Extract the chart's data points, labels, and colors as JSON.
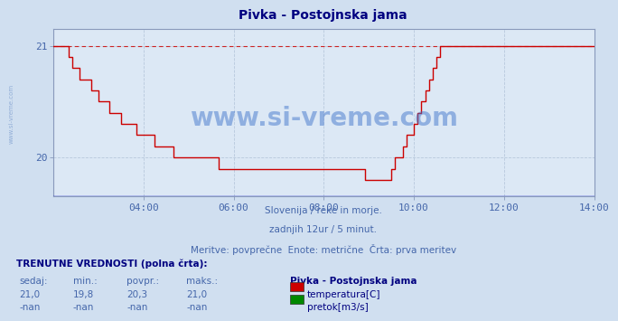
{
  "title": "Pivka - Postojnska jama",
  "bg_color": "#d0dff0",
  "plot_bg_color": "#dce8f5",
  "title_color": "#000080",
  "grid_color": "#b8c8dc",
  "axis_color": "#8899bb",
  "text_color": "#4466aa",
  "xlabel_ticks": [
    "04:00",
    "06:00",
    "08:00",
    "10:00",
    "12:00",
    "14:00"
  ],
  "ylim": [
    19.65,
    21.15
  ],
  "yticks": [
    20.0,
    21.0
  ],
  "line_color": "#cc0000",
  "dashed_line_color": "#cc2222",
  "flow_line_color": "#0000cc",
  "subtitle1": "Slovenija / reke in morje.",
  "subtitle2": "zadnjih 12ur / 5 minut.",
  "subtitle3": "Meritve: povprečne  Enote: metrične  Črta: prva meritev",
  "table_header": "TRENUTNE VREDNOSTI (polna črta):",
  "col_headers": [
    "sedaj:",
    "min.:",
    "povpr.:",
    "maks.:"
  ],
  "row1_values": [
    "21,0",
    "19,8",
    "20,3",
    "21,0"
  ],
  "row2_values": [
    "-nan",
    "-nan",
    "-nan",
    "-nan"
  ],
  "legend_title": "Pivka - Postojnska jama",
  "legend_items": [
    "temperatura[C]",
    "pretok[m3/s]"
  ],
  "legend_colors": [
    "#cc0000",
    "#008800"
  ],
  "watermark": "www.si-vreme.com",
  "watermark_color": "#4477cc",
  "temp_data": [
    21.0,
    21.0,
    21.0,
    21.0,
    20.9,
    20.8,
    20.8,
    20.7,
    20.7,
    20.7,
    20.6,
    20.6,
    20.5,
    20.5,
    20.5,
    20.4,
    20.4,
    20.4,
    20.3,
    20.3,
    20.3,
    20.3,
    20.2,
    20.2,
    20.2,
    20.2,
    20.2,
    20.1,
    20.1,
    20.1,
    20.1,
    20.1,
    20.0,
    20.0,
    20.0,
    20.0,
    20.0,
    20.0,
    20.0,
    20.0,
    20.0,
    20.0,
    20.0,
    20.0,
    19.9,
    19.9,
    19.9,
    19.9,
    19.9,
    19.9,
    19.9,
    19.9,
    19.9,
    19.9,
    19.9,
    19.9,
    19.9,
    19.9,
    19.9,
    19.9,
    19.9,
    19.9,
    19.9,
    19.9,
    19.9,
    19.9,
    19.9,
    19.9,
    19.9,
    19.9,
    19.9,
    19.9,
    19.9,
    19.9,
    19.9,
    19.9,
    19.9,
    19.9,
    19.9,
    19.9,
    19.9,
    19.9,
    19.9,
    19.8,
    19.8,
    19.8,
    19.8,
    19.8,
    19.8,
    19.8,
    19.9,
    20.0,
    20.0,
    20.1,
    20.2,
    20.2,
    20.3,
    20.4,
    20.5,
    20.6,
    20.7,
    20.8,
    20.9,
    21.0,
    21.0,
    21.0,
    21.0,
    21.0,
    21.0,
    21.0,
    21.0,
    21.0,
    21.0,
    21.0,
    21.0,
    21.0,
    21.0,
    21.0,
    21.0,
    21.0,
    21.0,
    21.0,
    21.0,
    21.0,
    21.0,
    21.0,
    21.0,
    21.0,
    21.0,
    21.0,
    21.0,
    21.0,
    21.0,
    21.0,
    21.0,
    21.0,
    21.0,
    21.0,
    21.0,
    21.0,
    21.0,
    21.0,
    21.0,
    21.0,
    21.0
  ]
}
